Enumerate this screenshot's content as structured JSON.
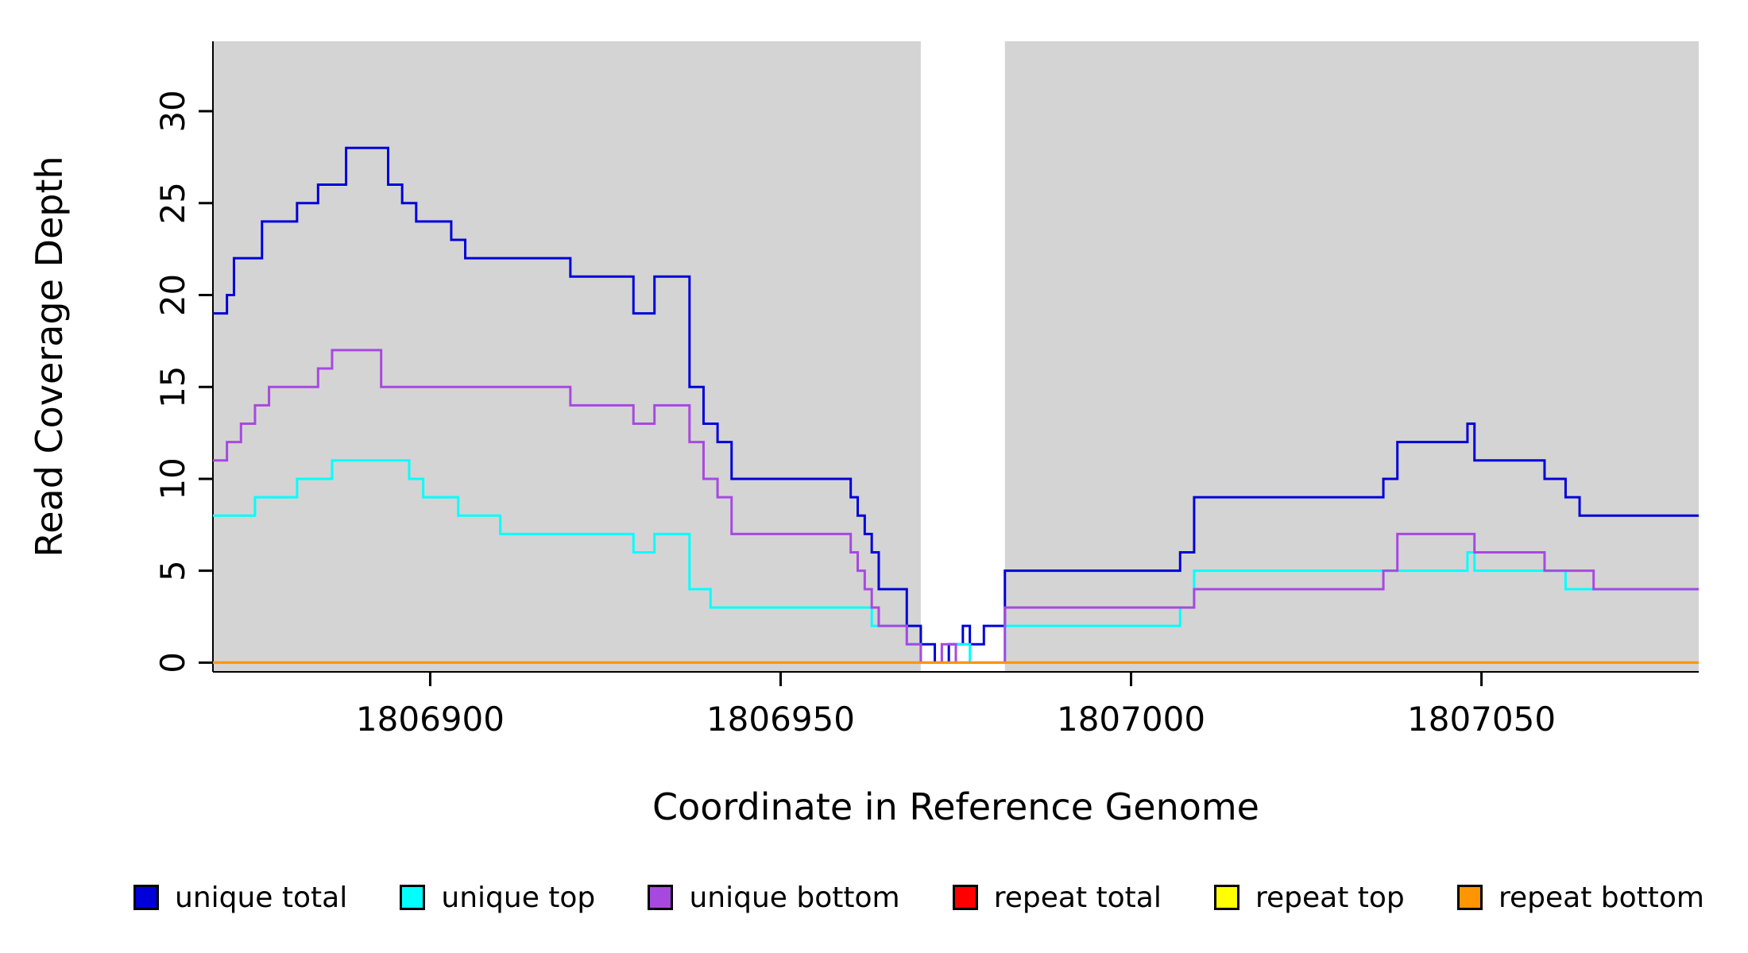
{
  "chart_data": {
    "type": "line",
    "step": true,
    "title": "",
    "xlabel": "Coordinate in Reference Genome",
    "ylabel": "Read Coverage Depth",
    "xlim": [
      1806869,
      1807081
    ],
    "ylim": [
      0,
      33
    ],
    "x_ticks": [
      1806900,
      1806950,
      1807000,
      1807050
    ],
    "y_ticks": [
      0,
      5,
      10,
      15,
      20,
      25,
      30
    ],
    "grid": false,
    "legend_position": "bottom",
    "background": {
      "plot_bg": "#d4d4d4",
      "white_band": [
        1806970,
        1806982
      ]
    },
    "series": [
      {
        "name": "unique total",
        "color": "#0000d9",
        "points": [
          [
            1806869,
            19
          ],
          [
            1806871,
            20
          ],
          [
            1806872,
            22
          ],
          [
            1806876,
            24
          ],
          [
            1806881,
            25
          ],
          [
            1806884,
            26
          ],
          [
            1806888,
            28
          ],
          [
            1806894,
            26
          ],
          [
            1806896,
            25
          ],
          [
            1806898,
            24
          ],
          [
            1806903,
            23
          ],
          [
            1806905,
            22
          ],
          [
            1806920,
            21
          ],
          [
            1806929,
            19
          ],
          [
            1806932,
            21
          ],
          [
            1806937,
            15
          ],
          [
            1806939,
            13
          ],
          [
            1806941,
            12
          ],
          [
            1806943,
            10
          ],
          [
            1806960,
            9
          ],
          [
            1806961,
            8
          ],
          [
            1806962,
            7
          ],
          [
            1806963,
            6
          ],
          [
            1806964,
            4
          ],
          [
            1806968,
            2
          ],
          [
            1806970,
            1
          ],
          [
            1806972,
            0
          ],
          [
            1806974,
            1
          ],
          [
            1806976,
            2
          ],
          [
            1806977,
            1
          ],
          [
            1806979,
            2
          ],
          [
            1806982,
            5
          ],
          [
            1807007,
            6
          ],
          [
            1807009,
            9
          ],
          [
            1807036,
            10
          ],
          [
            1807038,
            12
          ],
          [
            1807048,
            13
          ],
          [
            1807049,
            11
          ],
          [
            1807059,
            10
          ],
          [
            1807062,
            9
          ],
          [
            1807064,
            8
          ]
        ]
      },
      {
        "name": "unique top",
        "color": "#00ffff",
        "points": [
          [
            1806869,
            8
          ],
          [
            1806875,
            9
          ],
          [
            1806881,
            10
          ],
          [
            1806886,
            11
          ],
          [
            1806897,
            10
          ],
          [
            1806899,
            9
          ],
          [
            1806904,
            8
          ],
          [
            1806910,
            7
          ],
          [
            1806929,
            6
          ],
          [
            1806932,
            7
          ],
          [
            1806937,
            4
          ],
          [
            1806940,
            3
          ],
          [
            1806963,
            2
          ],
          [
            1806968,
            1
          ],
          [
            1806970,
            0
          ],
          [
            1806975,
            1
          ],
          [
            1806977,
            0
          ],
          [
            1806982,
            2
          ],
          [
            1807007,
            3
          ],
          [
            1807009,
            5
          ],
          [
            1807048,
            6
          ],
          [
            1807049,
            5
          ],
          [
            1807062,
            4
          ]
        ]
      },
      {
        "name": "unique bottom",
        "color": "#a749e0",
        "points": [
          [
            1806869,
            11
          ],
          [
            1806871,
            12
          ],
          [
            1806873,
            13
          ],
          [
            1806875,
            14
          ],
          [
            1806877,
            15
          ],
          [
            1806884,
            16
          ],
          [
            1806886,
            17
          ],
          [
            1806893,
            15
          ],
          [
            1806920,
            14
          ],
          [
            1806929,
            13
          ],
          [
            1806932,
            14
          ],
          [
            1806937,
            12
          ],
          [
            1806939,
            10
          ],
          [
            1806941,
            9
          ],
          [
            1806943,
            7
          ],
          [
            1806960,
            6
          ],
          [
            1806961,
            5
          ],
          [
            1806962,
            4
          ],
          [
            1806963,
            3
          ],
          [
            1806964,
            2
          ],
          [
            1806968,
            1
          ],
          [
            1806970,
            0
          ],
          [
            1806973,
            1
          ],
          [
            1806975,
            0
          ],
          [
            1806982,
            3
          ],
          [
            1807009,
            4
          ],
          [
            1807036,
            5
          ],
          [
            1807038,
            7
          ],
          [
            1807049,
            6
          ],
          [
            1807059,
            5
          ],
          [
            1807066,
            4
          ]
        ]
      },
      {
        "name": "repeat total",
        "color": "#ff0000",
        "points": [
          [
            1806869,
            0
          ]
        ]
      },
      {
        "name": "repeat top",
        "color": "#ffff00",
        "points": [
          [
            1806869,
            0
          ]
        ]
      },
      {
        "name": "repeat bottom",
        "color": "#ff9500",
        "points": [
          [
            1806869,
            0
          ]
        ]
      }
    ]
  }
}
